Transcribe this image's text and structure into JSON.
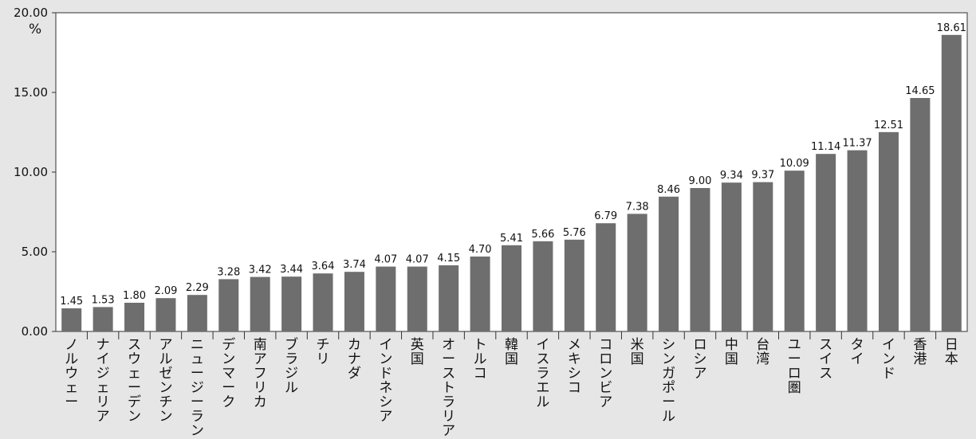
{
  "chart_data": {
    "type": "bar",
    "title": "",
    "xlabel": "",
    "ylabel": "",
    "unit": "%",
    "ylim": [
      0,
      20
    ],
    "yticks": [
      "0.00",
      "5.00",
      "10.00",
      "15.00",
      "20.00"
    ],
    "categories": [
      "ノルウェー",
      "ナイジェリア",
      "スウェーデン",
      "アルゼンチン",
      "ニュージーランド",
      "デンマーク",
      "南アフリカ",
      "ブラジル",
      "チリ",
      "カナダ",
      "インドネシア",
      "英国",
      "オーストラリア",
      "トルコ",
      "韓国",
      "イスラエル",
      "メキシコ",
      "コロンビア",
      "米国",
      "シンガポール",
      "ロシア",
      "中国",
      "台湾",
      "ユーロ圏",
      "スイス",
      "タイ",
      "インド",
      "香港",
      "日本"
    ],
    "values": [
      1.45,
      1.53,
      1.8,
      2.09,
      2.29,
      3.28,
      3.42,
      3.44,
      3.64,
      3.74,
      4.07,
      4.07,
      4.15,
      4.7,
      5.41,
      5.66,
      5.76,
      6.79,
      7.38,
      8.46,
      9.0,
      9.34,
      9.37,
      10.09,
      11.14,
      11.37,
      12.51,
      14.65,
      18.61
    ],
    "data_labels": [
      "1.45",
      "1.53",
      "1.80",
      "2.09",
      "2.29",
      "3.28",
      "3.42",
      "3.44",
      "3.64",
      "3.74",
      "4.07",
      "4.07",
      "4.15",
      "4.70",
      "5.41",
      "5.66",
      "5.76",
      "6.79",
      "7.38",
      "8.46",
      "9.00",
      "9.34",
      "9.37",
      "10.09",
      "11.14",
      "11.37",
      "12.51",
      "14.65",
      "18.61"
    ],
    "bar_color": "#6e6e6e",
    "plot_background": "#ffffff",
    "page_background": "#e6e6e6",
    "grid": false,
    "legend": "none"
  }
}
